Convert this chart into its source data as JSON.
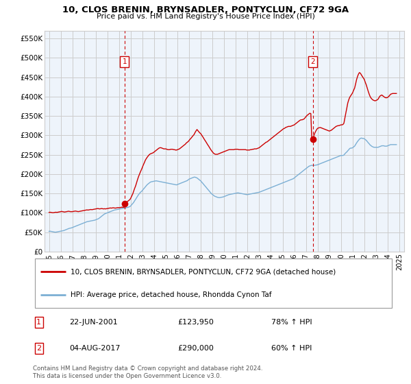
{
  "title": "10, CLOS BRENIN, BRYNSADLER, PONTYCLUN, CF72 9GA",
  "subtitle": "Price paid vs. HM Land Registry's House Price Index (HPI)",
  "ylabel_ticks": [
    "£0",
    "£50K",
    "£100K",
    "£150K",
    "£200K",
    "£250K",
    "£300K",
    "£350K",
    "£400K",
    "£450K",
    "£500K",
    "£550K"
  ],
  "ytick_values": [
    0,
    50000,
    100000,
    150000,
    200000,
    250000,
    300000,
    350000,
    400000,
    450000,
    500000,
    550000
  ],
  "ylim": [
    0,
    570000
  ],
  "xlim_start": 1994.6,
  "xlim_end": 2025.4,
  "legend_line1": "10, CLOS BRENIN, BRYNSADLER, PONTYCLUN, CF72 9GA (detached house)",
  "legend_line2": "HPI: Average price, detached house, Rhondda Cynon Taf",
  "sale1_date": "22-JUN-2001",
  "sale1_price": "£123,950",
  "sale1_hpi": "78% ↑ HPI",
  "sale1_x": 2001.47,
  "sale1_y": 123950,
  "sale2_date": "04-AUG-2017",
  "sale2_price": "£290,000",
  "sale2_hpi": "60% ↑ HPI",
  "sale2_x": 2017.59,
  "sale2_y": 290000,
  "line_color_red": "#CC0000",
  "line_color_blue": "#7BAFD4",
  "vline_color": "#CC0000",
  "grid_color": "#CCCCCC",
  "bg_color": "#EEF4FB",
  "footer": "Contains HM Land Registry data © Crown copyright and database right 2024.\nThis data is licensed under the Open Government Licence v3.0.",
  "hpi_data_x": [
    1995.0,
    1995.08,
    1995.17,
    1995.25,
    1995.33,
    1995.42,
    1995.5,
    1995.58,
    1995.67,
    1995.75,
    1995.83,
    1995.92,
    1996.0,
    1996.08,
    1996.17,
    1996.25,
    1996.33,
    1996.42,
    1996.5,
    1996.58,
    1996.67,
    1996.75,
    1996.83,
    1996.92,
    1997.0,
    1997.08,
    1997.17,
    1997.25,
    1997.33,
    1997.42,
    1997.5,
    1997.58,
    1997.67,
    1997.75,
    1997.83,
    1997.92,
    1998.0,
    1998.08,
    1998.17,
    1998.25,
    1998.33,
    1998.42,
    1998.5,
    1998.58,
    1998.67,
    1998.75,
    1998.83,
    1998.92,
    1999.0,
    1999.08,
    1999.17,
    1999.25,
    1999.33,
    1999.42,
    1999.5,
    1999.58,
    1999.67,
    1999.75,
    1999.83,
    1999.92,
    2000.0,
    2000.08,
    2000.17,
    2000.25,
    2000.33,
    2000.42,
    2000.5,
    2000.58,
    2000.67,
    2000.75,
    2000.83,
    2000.92,
    2001.0,
    2001.08,
    2001.17,
    2001.25,
    2001.33,
    2001.42,
    2001.5,
    2001.58,
    2001.67,
    2001.75,
    2001.83,
    2001.92,
    2002.0,
    2002.08,
    2002.17,
    2002.25,
    2002.33,
    2002.42,
    2002.5,
    2002.58,
    2002.67,
    2002.75,
    2002.83,
    2002.92,
    2003.0,
    2003.08,
    2003.17,
    2003.25,
    2003.33,
    2003.42,
    2003.5,
    2003.58,
    2003.67,
    2003.75,
    2003.83,
    2003.92,
    2004.0,
    2004.08,
    2004.17,
    2004.25,
    2004.33,
    2004.42,
    2004.5,
    2004.58,
    2004.67,
    2004.75,
    2004.83,
    2004.92,
    2005.0,
    2005.08,
    2005.17,
    2005.25,
    2005.33,
    2005.42,
    2005.5,
    2005.58,
    2005.67,
    2005.75,
    2005.83,
    2005.92,
    2006.0,
    2006.08,
    2006.17,
    2006.25,
    2006.33,
    2006.42,
    2006.5,
    2006.58,
    2006.67,
    2006.75,
    2006.83,
    2006.92,
    2007.0,
    2007.08,
    2007.17,
    2007.25,
    2007.33,
    2007.42,
    2007.5,
    2007.58,
    2007.67,
    2007.75,
    2007.83,
    2007.92,
    2008.0,
    2008.08,
    2008.17,
    2008.25,
    2008.33,
    2008.42,
    2008.5,
    2008.58,
    2008.67,
    2008.75,
    2008.83,
    2008.92,
    2009.0,
    2009.08,
    2009.17,
    2009.25,
    2009.33,
    2009.42,
    2009.5,
    2009.58,
    2009.67,
    2009.75,
    2009.83,
    2009.92,
    2010.0,
    2010.08,
    2010.17,
    2010.25,
    2010.33,
    2010.42,
    2010.5,
    2010.58,
    2010.67,
    2010.75,
    2010.83,
    2010.92,
    2011.0,
    2011.08,
    2011.17,
    2011.25,
    2011.33,
    2011.42,
    2011.5,
    2011.58,
    2011.67,
    2011.75,
    2011.83,
    2011.92,
    2012.0,
    2012.08,
    2012.17,
    2012.25,
    2012.33,
    2012.42,
    2012.5,
    2012.58,
    2012.67,
    2012.75,
    2012.83,
    2012.92,
    2013.0,
    2013.08,
    2013.17,
    2013.25,
    2013.33,
    2013.42,
    2013.5,
    2013.58,
    2013.67,
    2013.75,
    2013.83,
    2013.92,
    2014.0,
    2014.08,
    2014.17,
    2014.25,
    2014.33,
    2014.42,
    2014.5,
    2014.58,
    2014.67,
    2014.75,
    2014.83,
    2014.92,
    2015.0,
    2015.08,
    2015.17,
    2015.25,
    2015.33,
    2015.42,
    2015.5,
    2015.58,
    2015.67,
    2015.75,
    2015.83,
    2015.92,
    2016.0,
    2016.08,
    2016.17,
    2016.25,
    2016.33,
    2016.42,
    2016.5,
    2016.58,
    2016.67,
    2016.75,
    2016.83,
    2016.92,
    2017.0,
    2017.08,
    2017.17,
    2017.25,
    2017.33,
    2017.42,
    2017.5,
    2017.58,
    2017.67,
    2017.75,
    2017.83,
    2017.92,
    2018.0,
    2018.08,
    2018.17,
    2018.25,
    2018.33,
    2018.42,
    2018.5,
    2018.58,
    2018.67,
    2018.75,
    2018.83,
    2018.92,
    2019.0,
    2019.08,
    2019.17,
    2019.25,
    2019.33,
    2019.42,
    2019.5,
    2019.58,
    2019.67,
    2019.75,
    2019.83,
    2019.92,
    2020.0,
    2020.08,
    2020.17,
    2020.25,
    2020.33,
    2020.42,
    2020.5,
    2020.58,
    2020.67,
    2020.75,
    2020.83,
    2020.92,
    2021.0,
    2021.08,
    2021.17,
    2021.25,
    2021.33,
    2021.42,
    2021.5,
    2021.58,
    2021.67,
    2021.75,
    2021.83,
    2021.92,
    2022.0,
    2022.08,
    2022.17,
    2022.25,
    2022.33,
    2022.42,
    2022.5,
    2022.58,
    2022.67,
    2022.75,
    2022.83,
    2022.92,
    2023.0,
    2023.08,
    2023.17,
    2023.25,
    2023.33,
    2023.42,
    2023.5,
    2023.58,
    2023.67,
    2023.75,
    2023.83,
    2023.92,
    2024.0,
    2024.08,
    2024.17,
    2024.25,
    2024.33,
    2024.42,
    2024.5,
    2024.58,
    2024.67,
    2024.75
  ],
  "hpi_data_y": [
    52000,
    52500,
    52000,
    51500,
    51000,
    50500,
    50000,
    50000,
    50500,
    51000,
    51500,
    52000,
    52500,
    53000,
    53500,
    54000,
    55000,
    56000,
    57000,
    58000,
    59000,
    60000,
    60500,
    61000,
    62000,
    63000,
    64000,
    65000,
    66000,
    67000,
    68000,
    69000,
    70000,
    71000,
    72000,
    73000,
    74000,
    75000,
    76000,
    77000,
    77500,
    78000,
    78500,
    79000,
    79500,
    80000,
    80500,
    81000,
    82000,
    83000,
    84000,
    85000,
    87000,
    89000,
    91000,
    93000,
    95000,
    97000,
    98000,
    99000,
    100000,
    101000,
    102000,
    103000,
    104000,
    105000,
    106000,
    107000,
    107500,
    108000,
    108500,
    109000,
    109500,
    110000,
    110500,
    111000,
    111500,
    112000,
    112500,
    113000,
    113500,
    114000,
    115000,
    116000,
    118000,
    121000,
    124000,
    127000,
    131000,
    135000,
    139000,
    143000,
    147000,
    150000,
    153000,
    155000,
    158000,
    161000,
    164000,
    167000,
    170000,
    173000,
    175000,
    177000,
    179000,
    180000,
    180500,
    181000,
    181500,
    182000,
    182500,
    182000,
    181500,
    181000,
    180500,
    180000,
    179500,
    179000,
    178500,
    178000,
    177500,
    177000,
    176500,
    176000,
    175500,
    175000,
    174500,
    174000,
    173500,
    173000,
    172500,
    172000,
    173000,
    174000,
    175000,
    176000,
    177000,
    178000,
    179000,
    180000,
    181000,
    182000,
    183000,
    185000,
    187000,
    188000,
    189000,
    190000,
    191000,
    192000,
    192000,
    191000,
    190000,
    188000,
    186000,
    184000,
    182000,
    179000,
    176000,
    173000,
    170000,
    167000,
    164000,
    161000,
    158000,
    155000,
    152000,
    149000,
    147000,
    145000,
    143000,
    142000,
    141000,
    140000,
    139500,
    139000,
    139500,
    140000,
    140500,
    141000,
    142000,
    143000,
    144000,
    145000,
    146000,
    147000,
    147500,
    148000,
    148500,
    149000,
    149500,
    150000,
    150500,
    151000,
    151500,
    151000,
    150500,
    150000,
    149500,
    149000,
    148500,
    148000,
    147500,
    147000,
    147000,
    147500,
    148000,
    148500,
    149000,
    149500,
    150000,
    150500,
    151000,
    151500,
    152000,
    152500,
    153000,
    154000,
    155000,
    156000,
    157000,
    158000,
    159000,
    160000,
    161000,
    162000,
    163000,
    164000,
    165000,
    166000,
    167000,
    168000,
    169000,
    170000,
    171000,
    172000,
    173000,
    174000,
    175000,
    176000,
    177000,
    178000,
    179000,
    180000,
    181000,
    182000,
    183000,
    184000,
    185000,
    186000,
    187000,
    188000,
    190000,
    192000,
    194000,
    196000,
    198000,
    200000,
    202000,
    204000,
    206000,
    208000,
    210000,
    212000,
    214000,
    216000,
    218000,
    220000,
    221000,
    222000,
    222500,
    222000,
    222000,
    222500,
    223000,
    223500,
    224000,
    225000,
    226000,
    227000,
    228000,
    229000,
    230000,
    231000,
    232000,
    233000,
    234000,
    235000,
    236000,
    237000,
    238000,
    239000,
    240000,
    241000,
    242000,
    243000,
    244000,
    245000,
    246000,
    247000,
    248000,
    248000,
    248000,
    249000,
    252000,
    255000,
    257000,
    260000,
    263000,
    266000,
    267000,
    267000,
    268000,
    270000,
    272000,
    276000,
    280000,
    284000,
    287000,
    290000,
    292000,
    293000,
    292000,
    292000,
    291000,
    289000,
    287000,
    284000,
    281000,
    278000,
    275000,
    273000,
    271000,
    270000,
    269000,
    269000,
    269000,
    269000,
    269000,
    270000,
    271000,
    272000,
    273000,
    273000,
    273000,
    272000,
    272000,
    272000,
    273000,
    274000,
    275000,
    276000,
    276000,
    276000,
    276000,
    276000,
    276000,
    276000
  ],
  "price_data_x": [
    1995.0,
    1995.08,
    1995.17,
    1995.25,
    1995.33,
    1995.42,
    1995.5,
    1995.58,
    1995.67,
    1995.75,
    1995.83,
    1995.92,
    1996.0,
    1996.08,
    1996.17,
    1996.25,
    1996.33,
    1996.42,
    1996.5,
    1996.58,
    1996.67,
    1996.75,
    1996.83,
    1996.92,
    1997.0,
    1997.08,
    1997.17,
    1997.25,
    1997.33,
    1997.42,
    1997.5,
    1997.58,
    1997.67,
    1997.75,
    1997.83,
    1997.92,
    1998.0,
    1998.08,
    1998.17,
    1998.25,
    1998.33,
    1998.42,
    1998.5,
    1998.58,
    1998.67,
    1998.75,
    1998.83,
    1998.92,
    1999.0,
    1999.08,
    1999.17,
    1999.25,
    1999.33,
    1999.42,
    1999.5,
    1999.58,
    1999.67,
    1999.75,
    1999.83,
    1999.92,
    2000.0,
    2000.08,
    2000.17,
    2000.25,
    2000.33,
    2000.42,
    2000.5,
    2000.58,
    2000.67,
    2000.75,
    2000.83,
    2000.92,
    2001.0,
    2001.08,
    2001.17,
    2001.25,
    2001.33,
    2001.42,
    2001.5,
    2001.58,
    2001.67,
    2001.75,
    2001.83,
    2001.92,
    2002.0,
    2002.08,
    2002.17,
    2002.25,
    2002.33,
    2002.42,
    2002.5,
    2002.58,
    2002.67,
    2002.75,
    2002.83,
    2002.92,
    2003.0,
    2003.08,
    2003.17,
    2003.25,
    2003.33,
    2003.42,
    2003.5,
    2003.58,
    2003.67,
    2003.75,
    2003.83,
    2003.92,
    2004.0,
    2004.08,
    2004.17,
    2004.25,
    2004.33,
    2004.42,
    2004.5,
    2004.58,
    2004.67,
    2004.75,
    2004.83,
    2004.92,
    2005.0,
    2005.08,
    2005.17,
    2005.25,
    2005.33,
    2005.42,
    2005.5,
    2005.58,
    2005.67,
    2005.75,
    2005.83,
    2005.92,
    2006.0,
    2006.08,
    2006.17,
    2006.25,
    2006.33,
    2006.42,
    2006.5,
    2006.58,
    2006.67,
    2006.75,
    2006.83,
    2006.92,
    2007.0,
    2007.08,
    2007.17,
    2007.25,
    2007.33,
    2007.42,
    2007.5,
    2007.58,
    2007.67,
    2007.75,
    2007.83,
    2007.92,
    2008.0,
    2008.08,
    2008.17,
    2008.25,
    2008.33,
    2008.42,
    2008.5,
    2008.58,
    2008.67,
    2008.75,
    2008.83,
    2008.92,
    2009.0,
    2009.08,
    2009.17,
    2009.25,
    2009.33,
    2009.42,
    2009.5,
    2009.58,
    2009.67,
    2009.75,
    2009.83,
    2009.92,
    2010.0,
    2010.08,
    2010.17,
    2010.25,
    2010.33,
    2010.42,
    2010.5,
    2010.58,
    2010.67,
    2010.75,
    2010.83,
    2010.92,
    2011.0,
    2011.08,
    2011.17,
    2011.25,
    2011.33,
    2011.42,
    2011.5,
    2011.58,
    2011.67,
    2011.75,
    2011.83,
    2011.92,
    2012.0,
    2012.08,
    2012.17,
    2012.25,
    2012.33,
    2012.42,
    2012.5,
    2012.58,
    2012.67,
    2012.75,
    2012.83,
    2012.92,
    2013.0,
    2013.08,
    2013.17,
    2013.25,
    2013.33,
    2013.42,
    2013.5,
    2013.58,
    2013.67,
    2013.75,
    2013.83,
    2013.92,
    2014.0,
    2014.08,
    2014.17,
    2014.25,
    2014.33,
    2014.42,
    2014.5,
    2014.58,
    2014.67,
    2014.75,
    2014.83,
    2014.92,
    2015.0,
    2015.08,
    2015.17,
    2015.25,
    2015.33,
    2015.42,
    2015.5,
    2015.58,
    2015.67,
    2015.75,
    2015.83,
    2015.92,
    2016.0,
    2016.08,
    2016.17,
    2016.25,
    2016.33,
    2016.42,
    2016.5,
    2016.58,
    2016.67,
    2016.75,
    2016.83,
    2016.92,
    2017.0,
    2017.08,
    2017.17,
    2017.25,
    2017.33,
    2017.42,
    2017.5,
    2017.58,
    2017.67,
    2017.75,
    2017.83,
    2017.92,
    2018.0,
    2018.08,
    2018.17,
    2018.25,
    2018.33,
    2018.42,
    2018.5,
    2018.58,
    2018.67,
    2018.75,
    2018.83,
    2018.92,
    2019.0,
    2019.08,
    2019.17,
    2019.25,
    2019.33,
    2019.42,
    2019.5,
    2019.58,
    2019.67,
    2019.75,
    2019.83,
    2019.92,
    2020.0,
    2020.08,
    2020.17,
    2020.25,
    2020.33,
    2020.42,
    2020.5,
    2020.58,
    2020.67,
    2020.75,
    2020.83,
    2020.92,
    2021.0,
    2021.08,
    2021.17,
    2021.25,
    2021.33,
    2021.42,
    2021.5,
    2021.58,
    2021.67,
    2021.75,
    2021.83,
    2021.92,
    2022.0,
    2022.08,
    2022.17,
    2022.25,
    2022.33,
    2022.42,
    2022.5,
    2022.58,
    2022.67,
    2022.75,
    2022.83,
    2022.92,
    2023.0,
    2023.08,
    2023.17,
    2023.25,
    2023.33,
    2023.42,
    2023.5,
    2023.58,
    2023.67,
    2023.75,
    2023.83,
    2023.92,
    2024.0,
    2024.08,
    2024.17,
    2024.25,
    2024.33,
    2024.42,
    2024.5,
    2024.58,
    2024.67,
    2024.75
  ],
  "price_data_y": [
    101000,
    101500,
    101000,
    100500,
    100000,
    100500,
    101000,
    101500,
    101000,
    101500,
    102000,
    102500,
    103000,
    103500,
    103000,
    102500,
    102000,
    102500,
    103000,
    103500,
    104000,
    103500,
    103000,
    103000,
    103000,
    103500,
    104000,
    104500,
    104000,
    103500,
    103000,
    103500,
    104000,
    104500,
    105000,
    105500,
    106000,
    106500,
    107000,
    107500,
    107000,
    107500,
    108000,
    108500,
    108000,
    108500,
    109000,
    109500,
    110000,
    110500,
    111000,
    110500,
    110000,
    110500,
    111000,
    110500,
    110000,
    110500,
    110000,
    110500,
    111000,
    111500,
    112000,
    112500,
    112000,
    112500,
    113000,
    112500,
    112000,
    112500,
    113000,
    113500,
    113000,
    113500,
    114000,
    114500,
    114000,
    114500,
    123950,
    126000,
    128000,
    130000,
    132000,
    134000,
    138000,
    143000,
    149000,
    156000,
    163000,
    170000,
    178000,
    186000,
    194000,
    200000,
    206000,
    212000,
    218000,
    224000,
    230000,
    236000,
    240000,
    244000,
    247000,
    250000,
    252000,
    253000,
    254000,
    255000,
    257000,
    259000,
    261000,
    263000,
    265000,
    267000,
    268000,
    268000,
    267000,
    266000,
    265000,
    265000,
    265000,
    264000,
    263000,
    263000,
    263000,
    264000,
    264000,
    264000,
    263000,
    263000,
    262000,
    262000,
    263000,
    264000,
    265000,
    267000,
    269000,
    271000,
    273000,
    275000,
    277000,
    280000,
    282000,
    284000,
    287000,
    290000,
    293000,
    296000,
    299000,
    302000,
    307000,
    311000,
    315000,
    312000,
    309000,
    306000,
    304000,
    300000,
    296000,
    292000,
    288000,
    284000,
    280000,
    276000,
    272000,
    268000,
    264000,
    260000,
    257000,
    254000,
    252000,
    251000,
    251000,
    251000,
    252000,
    253000,
    254000,
    255000,
    256000,
    257000,
    258000,
    259000,
    260000,
    261000,
    262000,
    263000,
    263000,
    263000,
    263000,
    263000,
    263000,
    264000,
    264000,
    264000,
    264000,
    263000,
    263000,
    263000,
    263000,
    263000,
    263000,
    263000,
    263000,
    262000,
    262000,
    262000,
    262000,
    263000,
    263000,
    264000,
    264000,
    265000,
    265000,
    265000,
    266000,
    267000,
    268000,
    270000,
    272000,
    274000,
    276000,
    278000,
    280000,
    282000,
    283000,
    285000,
    287000,
    289000,
    291000,
    293000,
    295000,
    297000,
    299000,
    301000,
    303000,
    305000,
    307000,
    309000,
    311000,
    313000,
    315000,
    317000,
    318000,
    320000,
    321000,
    322000,
    323000,
    323000,
    323000,
    324000,
    325000,
    326000,
    327000,
    329000,
    331000,
    333000,
    335000,
    337000,
    339000,
    340000,
    340000,
    341000,
    342000,
    345000,
    348000,
    351000,
    353000,
    355000,
    357000,
    356000,
    290000,
    293000,
    298000,
    305000,
    310000,
    315000,
    318000,
    319000,
    320000,
    320000,
    319000,
    318000,
    317000,
    316000,
    315000,
    314000,
    313000,
    312000,
    311000,
    312000,
    313000,
    315000,
    317000,
    319000,
    321000,
    323000,
    324000,
    325000,
    325000,
    326000,
    327000,
    327000,
    328000,
    331000,
    344000,
    358000,
    370000,
    383000,
    392000,
    398000,
    402000,
    406000,
    410000,
    416000,
    422000,
    432000,
    443000,
    452000,
    458000,
    462000,
    460000,
    456000,
    452000,
    448000,
    444000,
    437000,
    430000,
    422000,
    414000,
    406000,
    400000,
    396000,
    393000,
    391000,
    390000,
    389000,
    390000,
    391000,
    393000,
    397000,
    401000,
    403000,
    404000,
    402000,
    400000,
    398000,
    397000,
    397000,
    398000,
    400000,
    403000,
    406000,
    407000,
    408000,
    408000,
    408000,
    408000,
    408000
  ]
}
